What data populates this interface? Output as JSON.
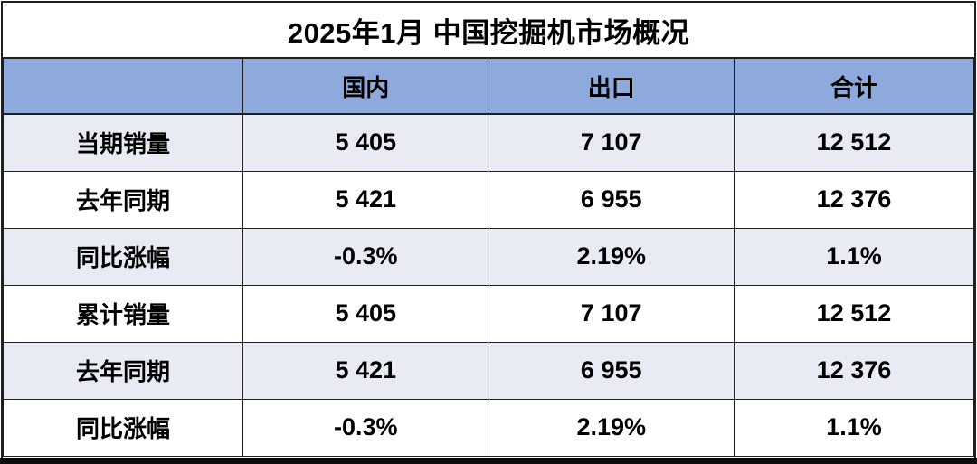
{
  "table": {
    "title": "2025年1月 中国挖掘机市场概况",
    "columns": [
      "",
      "国内",
      "出口",
      "合计"
    ],
    "rows": [
      {
        "label": "当期销量",
        "values": [
          "5 405",
          "7 107",
          "12 512"
        ]
      },
      {
        "label": "去年同期",
        "values": [
          "5 421",
          "6 955",
          "12 376"
        ]
      },
      {
        "label": "同比涨幅",
        "values": [
          "-0.3%",
          "2.19%",
          "1.1%"
        ]
      },
      {
        "label": "累计销量",
        "values": [
          "5 405",
          "7 107",
          "12 512"
        ]
      },
      {
        "label": "去年同期",
        "values": [
          "5 421",
          "6 955",
          "12 376"
        ]
      },
      {
        "label": "同比涨幅",
        "values": [
          "-0.3%",
          "2.19%",
          "1.1%"
        ]
      }
    ]
  },
  "chart_data": {
    "type": "table",
    "title": "2025年1月 中国挖掘机市场概况",
    "columns": [
      "",
      "国内",
      "出口",
      "合计"
    ],
    "rows": [
      [
        "当期销量",
        "5 405",
        "7 107",
        "12 512"
      ],
      [
        "去年同期",
        "5 421",
        "6 955",
        "12 376"
      ],
      [
        "同比涨幅",
        "-0.3%",
        "2.19%",
        "1.1%"
      ],
      [
        "累计销量",
        "5 405",
        "7 107",
        "12 512"
      ],
      [
        "去年同期",
        "5 421",
        "6 955",
        "12 376"
      ],
      [
        "同比涨幅",
        "-0.3%",
        "2.19%",
        "1.1%"
      ]
    ],
    "notes": "Numbers use space as thousands separator; rows alternate lavender/white banding"
  },
  "colors": {
    "header_bg": "#8EA9DC",
    "band_bg": "#E9EBF4",
    "border_color": "#1F1F1F",
    "text_color": "#000000"
  }
}
